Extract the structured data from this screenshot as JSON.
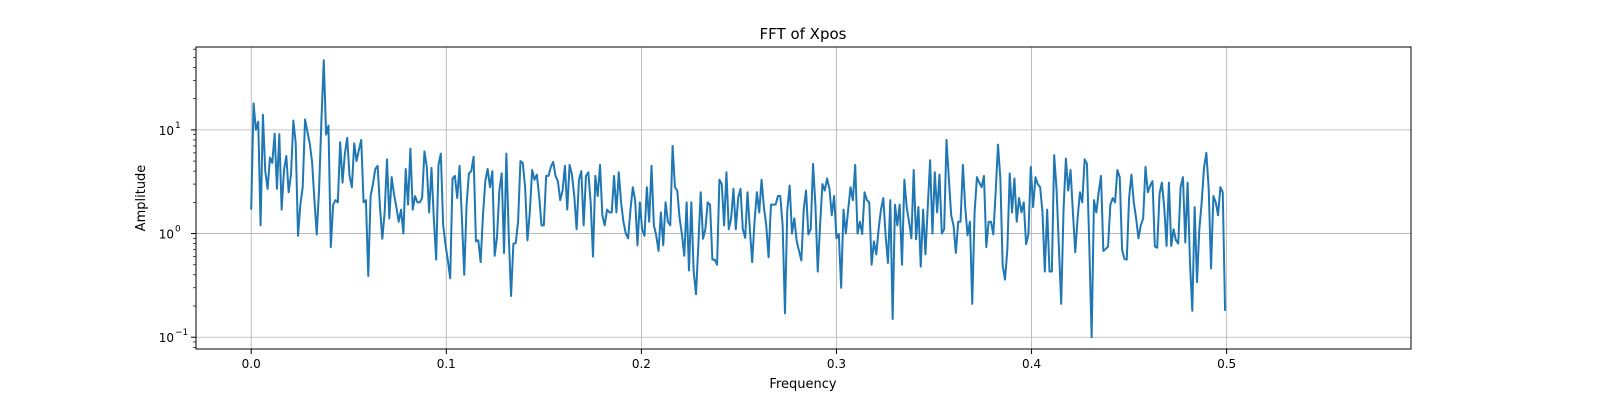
{
  "chart_data": {
    "type": "line",
    "title": "FFT of Xpos",
    "xlabel": "Frequency",
    "ylabel": "Amplitude",
    "xlim": [
      -0.0283,
      0.5945
    ],
    "xticks": [
      0.0,
      0.1,
      0.2,
      0.3,
      0.4,
      0.5
    ],
    "x_tick_labels": [
      "0.0",
      "0.1",
      "0.2",
      "0.3",
      "0.4",
      "0.5"
    ],
    "y_scale": "log",
    "ylim": [
      0.077,
      63
    ],
    "yticks": [
      0.1,
      1,
      10
    ],
    "y_tick_labels": [
      {
        "base": "10",
        "exp": "−1"
      },
      {
        "base": "10",
        "exp": "0"
      },
      {
        "base": "10",
        "exp": "1"
      }
    ],
    "grid": true,
    "series": [
      {
        "color": "#1f77b4",
        "x_start": 0.0,
        "x_step": 0.0012,
        "values": [
          1.7,
          18,
          10,
          12,
          1.2,
          14,
          4,
          2.7,
          5.4,
          4.8,
          9.2,
          2.7,
          9.1,
          1.7,
          4.1,
          5.6,
          2.5,
          3.7,
          12.3,
          7.5,
          0.95,
          1.9,
          2.8,
          12.6,
          9.6,
          7.4,
          4.9,
          2.1,
          0.98,
          2.7,
          12.5,
          47,
          9,
          11,
          0.74,
          1.9,
          2.1,
          2,
          7.6,
          3.1,
          5.9,
          8.4,
          3.6,
          2.8,
          7.4,
          5,
          6.4,
          8,
          2,
          2.1,
          0.39,
          2.3,
          3,
          4.2,
          4.5,
          1.8,
          0.89,
          1.6,
          5.2,
          1.4,
          3.5,
          2.4,
          1.8,
          1.3,
          1.7,
          1,
          4.2,
          1.9,
          6.6,
          1.7,
          2.3,
          2,
          2,
          2.2,
          6.2,
          4.4,
          1.6,
          4.3,
          1.4,
          0.56,
          4.6,
          5.9,
          1.2,
          0.78,
          0.55,
          0.37,
          3.4,
          3.6,
          2.2,
          4.5,
          1.4,
          0.4,
          1.9,
          3.8,
          4,
          5.5,
          0.84,
          0.86,
          0.53,
          1.5,
          3.2,
          4.2,
          2.8,
          4,
          0.61,
          0.93,
          2.6,
          3.8,
          0.65,
          5.9,
          0.98,
          0.25,
          0.8,
          0.81,
          1.3,
          5,
          4.8,
          2.8,
          0.86,
          1.6,
          4.1,
          3.3,
          3.7,
          2.3,
          1.2,
          1.2,
          3.6,
          3.6,
          4.4,
          4.9,
          3.6,
          3.2,
          2.1,
          2.6,
          4.5,
          1.7,
          4.6,
          3.7,
          2.3,
          1.1,
          3.3,
          4,
          1.2,
          3.6,
          3.9,
          2,
          0.6,
          3.6,
          2.3,
          4.6,
          1.5,
          1.2,
          1.7,
          1.6,
          1.6,
          3.6,
          1.6,
          3.9,
          2,
          1.3,
          1,
          0.9,
          1.7,
          2.8,
          2.1,
          0.77,
          2,
          1.1,
          0.95,
          2.8,
          1.3,
          4.5,
          1.2,
          0.96,
          0.68,
          1.6,
          0.77,
          2,
          1.3,
          1.2,
          7,
          2.8,
          2.6,
          1.4,
          0.98,
          0.61,
          2,
          0.44,
          2,
          0.43,
          0.26,
          0.78,
          2.5,
          0.89,
          1.1,
          2,
          1.9,
          0.56,
          0.56,
          0.5,
          3.3,
          3,
          1.2,
          3.9,
          1.1,
          1.4,
          2.7,
          1.1,
          2.2,
          2.7,
          1.1,
          0.91,
          2.5,
          1.1,
          0.53,
          1.3,
          2.5,
          1.6,
          3.3,
          1.8,
          1.2,
          0.59,
          1.9,
          1.9,
          1.9,
          2.3,
          2.3,
          1.2,
          0.17,
          1.7,
          2.9,
          1,
          1.4,
          0.85,
          0.68,
          0.55,
          1.7,
          2.6,
          0.98,
          1.1,
          4.7,
          1.9,
          0.43,
          1.2,
          3,
          2.6,
          3.4,
          2.7,
          1.5,
          2.3,
          0.9,
          0.99,
          0.3,
          1.7,
          1,
          1.7,
          2.8,
          2.1,
          4.6,
          1,
          1.3,
          0.99,
          2.5,
          2.1,
          2,
          0.5,
          0.84,
          0.63,
          1.1,
          1.7,
          2.2,
          0.96,
          0.52,
          2.1,
          0.15,
          1.9,
          1.2,
          1.9,
          0.5,
          3.3,
          1.8,
          1.3,
          0.9,
          4.1,
          0.88,
          1.8,
          0.48,
          1.7,
          0.63,
          1.8,
          5.1,
          1,
          3.9,
          1.6,
          3.7,
          1,
          1.1,
          8,
          3.4,
          1.5,
          1.2,
          0.65,
          1.3,
          1.3,
          4.6,
          1.8,
          0.96,
          1.3,
          0.21,
          1.6,
          3.5,
          3.1,
          2.8,
          3.6,
          0.74,
          1.3,
          1.3,
          0.98,
          2.5,
          7.2,
          3.4,
          0.49,
          0.36,
          0.71,
          3.8,
          1.6,
          3.4,
          1.3,
          2.2,
          1.6,
          2,
          0.79,
          0.99,
          4.4,
          1.8,
          3.5,
          3,
          2.8,
          1.6,
          0.43,
          1.7,
          0.43,
          0.43,
          5.7,
          2.7,
          0.75,
          0.21,
          1.7,
          5.3,
          2.6,
          4.1,
          1.6,
          0.66,
          1.4,
          2.5,
          2,
          5.2,
          4.7,
          0.77,
          0.1,
          2.1,
          1.6,
          2.5,
          3.6,
          0.68,
          0.71,
          0.75,
          1.9,
          2.2,
          2,
          4.1,
          3.5,
          0.7,
          0.57,
          0.56,
          2.2,
          3.7,
          2,
          1.4,
          0.9,
          1.2,
          1.4,
          4.4,
          2.5,
          2.9,
          3.2,
          0.75,
          0.73,
          2.4,
          3.1,
          1.8,
          0.76,
          3.1,
          0.76,
          1.1,
          0.86,
          0.8,
          2.8,
          3.5,
          0.82,
          3.1,
          0.53,
          0.18,
          1.8,
          0.34,
          1.1,
          2,
          4.3,
          6,
          2.7,
          0.46,
          2.3,
          2,
          1.5,
          2.8,
          2.5,
          0.18
        ]
      }
    ]
  }
}
